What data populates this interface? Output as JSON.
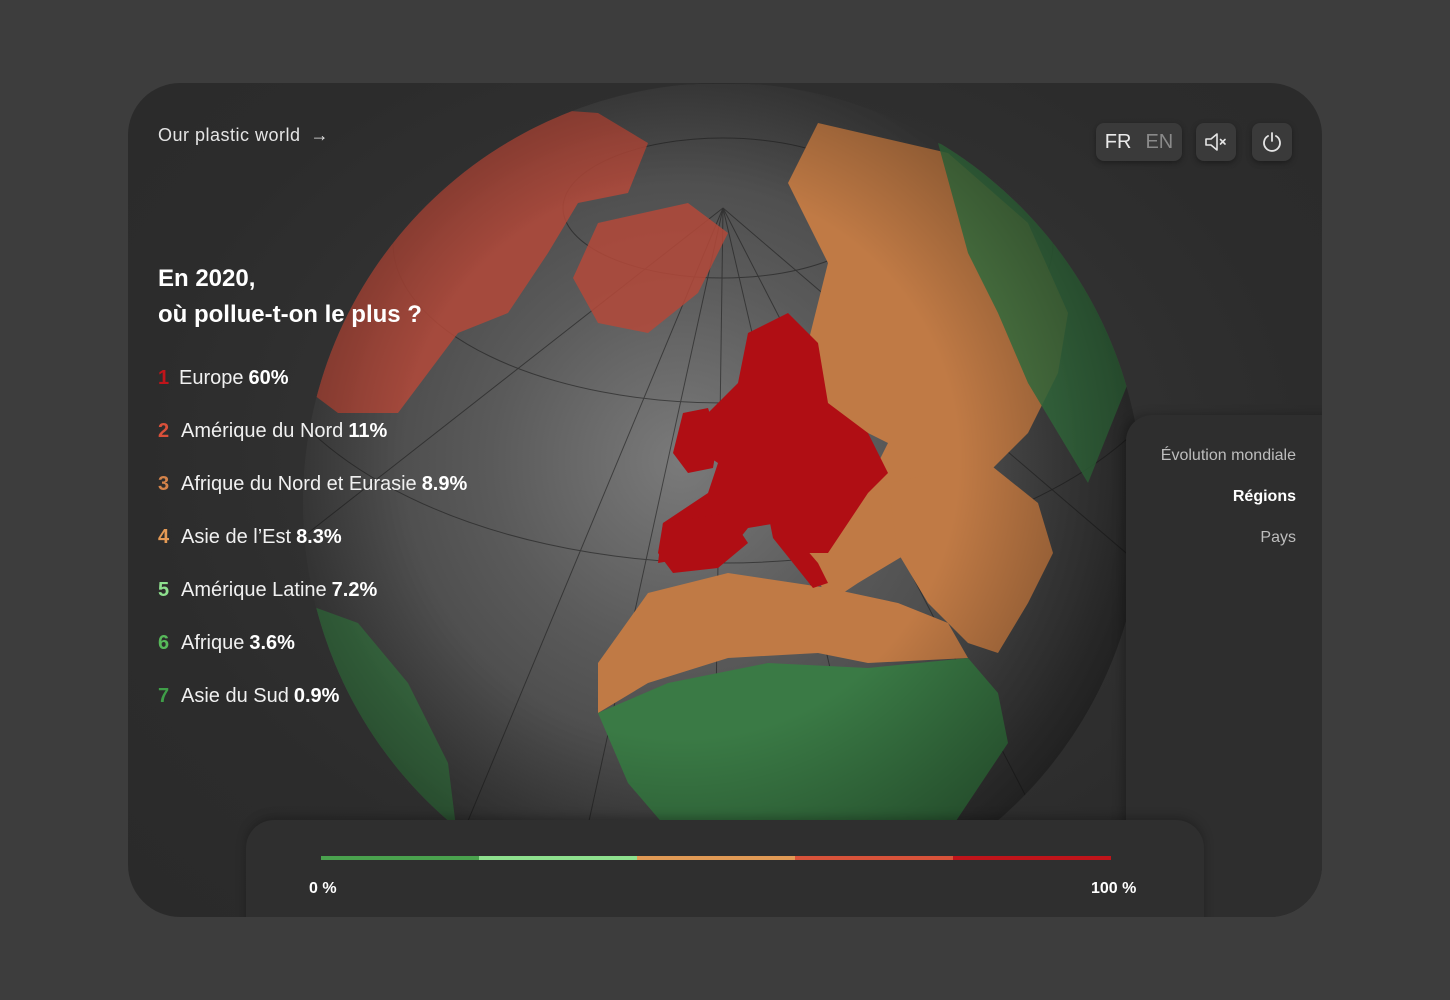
{
  "header": {
    "brand": "Our plastic world",
    "brand_arrow": "→",
    "lang_fr": "FR",
    "lang_en": "EN"
  },
  "headline": {
    "line1": "En 2020,",
    "line2": "où pollue-t-on le plus ?"
  },
  "ranking": [
    {
      "rank": "1",
      "name": "Europe",
      "value": "60%",
      "color": "#c0141a"
    },
    {
      "rank": "2",
      "name": "Amérique du Nord",
      "value": "11%",
      "color": "#d9503a"
    },
    {
      "rank": "3",
      "name": "Afrique du Nord et Eurasie",
      "value": "8.9%",
      "color": "#d4834a"
    },
    {
      "rank": "4",
      "name": "Asie de l’Est",
      "value": "8.3%",
      "color": "#e59a55"
    },
    {
      "rank": "5",
      "name": "Amérique Latine",
      "value": "7.2%",
      "color": "#8ee08e"
    },
    {
      "rank": "6",
      "name": "Afrique",
      "value": "3.6%",
      "color": "#57b85a"
    },
    {
      "rank": "7",
      "name": "Asie du Sud",
      "value": "0.9%",
      "color": "#3f9e48"
    }
  ],
  "side_menu": {
    "items": [
      {
        "label": "Évolution mondiale",
        "active": false
      },
      {
        "label": "Régions",
        "active": true
      },
      {
        "label": "Pays",
        "active": false
      }
    ]
  },
  "legend": {
    "min_label": "0 %",
    "max_label": "100 %",
    "colors": [
      "#4aa24e",
      "#8ee08e",
      "#e19a55",
      "#d9533a",
      "#c0141a"
    ]
  },
  "icons": {
    "sound": "sound-muted-icon",
    "power": "power-icon"
  }
}
